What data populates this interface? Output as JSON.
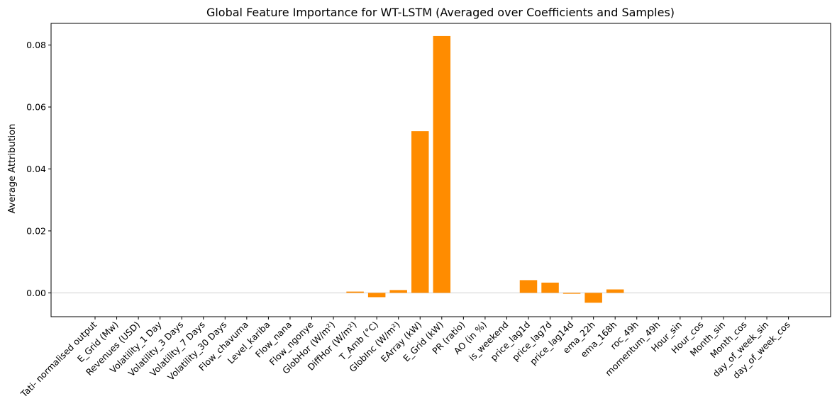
{
  "chart_data": {
    "type": "bar",
    "title": "Global Feature Importance for WT-LSTM (Averaged over Coefficients and Samples)",
    "xlabel": "",
    "ylabel": "Average Attribution",
    "ylim": [
      -0.0077,
      0.087
    ],
    "yticks": [
      0.0,
      0.02,
      0.04,
      0.06,
      0.08
    ],
    "ytick_labels": [
      "0.00",
      "0.02",
      "0.04",
      "0.06",
      "0.08"
    ],
    "bar_color": "#ff8c00",
    "zero_line_color": "#d9d9d9",
    "grid": false,
    "categories": [
      "Tati- normalised output",
      "E_Grid (Mw)",
      "Revenues (USD)",
      "Volatility_1 Day",
      "Volatility_3 Days",
      "Volatility_7 Days",
      "Volatility_30 Days",
      "Flow_chavuma",
      "Level_kariba",
      "Flow_nana",
      "Flow_ngonye",
      "GlobHor (W/m²)",
      "DiffHor (W/m²)",
      "T_Amb (°C)",
      "GlobInc (W/m²)",
      "EArray (kW)",
      "E_Grid (kW)",
      "PR (ratio)",
      "AO (in %)",
      "is_weekend",
      "price_lag1d",
      "price_lag7d",
      "price_lag14d",
      "ema_22h",
      "ema_168h",
      "roc_49h",
      "momentum_49h",
      "Hour_sin",
      "Hour_cos",
      "Month_sin",
      "Month_cos",
      "day_of_week_sin",
      "day_of_week_cos"
    ],
    "values": [
      0,
      0,
      0,
      0,
      0,
      0,
      0,
      0,
      0,
      0,
      0,
      0,
      0.0004,
      -0.0014,
      0.0009,
      0.0522,
      0.0829,
      0,
      0,
      0,
      0.0041,
      0.0033,
      -0.0003,
      -0.0032,
      0.0011,
      0,
      0,
      0,
      0,
      0,
      0,
      0,
      0
    ]
  }
}
